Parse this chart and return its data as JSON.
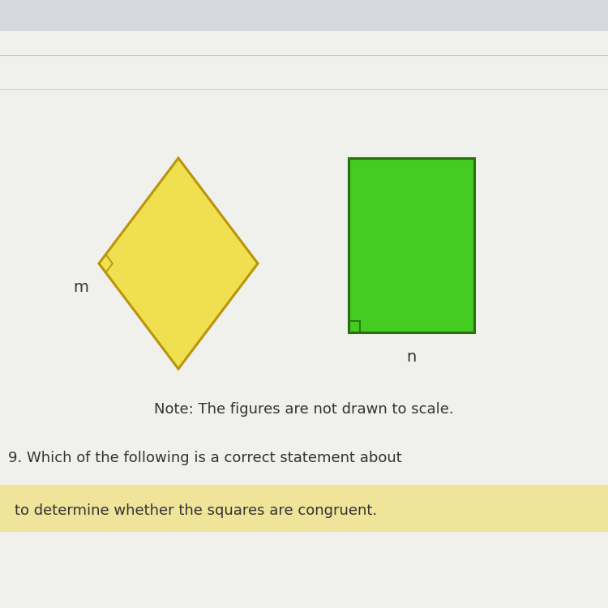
{
  "bg_color": "#f0f0ec",
  "top_stripe_color": "#d8d8e0",
  "thin_line_color": "#c0c8d0",
  "yellow_fill": "#f0e050",
  "yellow_edge": "#b8960a",
  "green_fill": "#44cc22",
  "green_edge": "#2a6e10",
  "highlight_color": "#f0e49a",
  "note_text": "Note: The figures are not drawn to scale.",
  "question_text": "9. Which of the following is a correct statement about",
  "highlight_text": "to determine whether the squares are congruent.",
  "label_m": "m",
  "label_n": "n",
  "font_size_label": 14,
  "font_size_note": 13,
  "font_size_question": 13,
  "line_width": 2.2
}
